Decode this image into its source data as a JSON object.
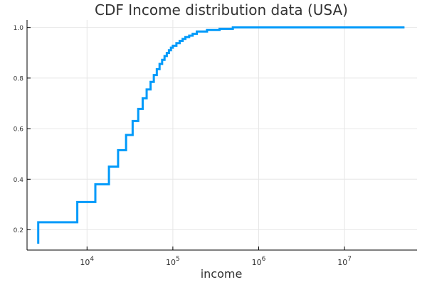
{
  "chart_data": {
    "type": "line",
    "title": "CDF Income distribution data (USA)",
    "xlabel": "income",
    "ylabel": "",
    "x_scale": "log10",
    "xlim": [
      2000,
      70000000
    ],
    "ylim": [
      0.12,
      1.03
    ],
    "grid": true,
    "legend": "none",
    "x_ticks": [
      {
        "value": 10000,
        "base": "10",
        "exponent": "4"
      },
      {
        "value": 100000,
        "base": "10",
        "exponent": "5"
      },
      {
        "value": 1000000,
        "base": "10",
        "exponent": "6"
      },
      {
        "value": 10000000,
        "base": "10",
        "exponent": "7"
      }
    ],
    "y_ticks": [
      {
        "value": 0.2,
        "label": "0.2"
      },
      {
        "value": 0.4,
        "label": "0.4"
      },
      {
        "value": 0.6,
        "label": "0.6"
      },
      {
        "value": 0.8,
        "label": "0.8"
      },
      {
        "value": 1.0,
        "label": "1.0"
      }
    ],
    "series": [
      {
        "color": "#009AFA",
        "step": true,
        "points": [
          [
            2700,
            0.145
          ],
          [
            2700,
            0.23
          ],
          [
            7700,
            0.23
          ],
          [
            7700,
            0.31
          ],
          [
            12500,
            0.31
          ],
          [
            12500,
            0.38
          ],
          [
            18000,
            0.38
          ],
          [
            18000,
            0.45
          ],
          [
            23000,
            0.45
          ],
          [
            23000,
            0.515
          ],
          [
            28500,
            0.515
          ],
          [
            28500,
            0.575
          ],
          [
            34000,
            0.575
          ],
          [
            34000,
            0.63
          ],
          [
            39500,
            0.63
          ],
          [
            39500,
            0.678
          ],
          [
            44500,
            0.678
          ],
          [
            44500,
            0.72
          ],
          [
            49500,
            0.72
          ],
          [
            49500,
            0.755
          ],
          [
            55000,
            0.755
          ],
          [
            55000,
            0.785
          ],
          [
            60000,
            0.785
          ],
          [
            60000,
            0.812
          ],
          [
            65000,
            0.812
          ],
          [
            65000,
            0.835
          ],
          [
            70000,
            0.835
          ],
          [
            70000,
            0.856
          ],
          [
            75000,
            0.856
          ],
          [
            75000,
            0.872
          ],
          [
            80000,
            0.872
          ],
          [
            80000,
            0.887
          ],
          [
            85000,
            0.887
          ],
          [
            85000,
            0.899
          ],
          [
            90000,
            0.899
          ],
          [
            90000,
            0.91
          ],
          [
            95000,
            0.91
          ],
          [
            95000,
            0.92
          ],
          [
            100000,
            0.92
          ],
          [
            100000,
            0.928
          ],
          [
            110000,
            0.928
          ],
          [
            110000,
            0.938
          ],
          [
            120000,
            0.938
          ],
          [
            120000,
            0.947
          ],
          [
            130000,
            0.947
          ],
          [
            130000,
            0.955
          ],
          [
            140000,
            0.955
          ],
          [
            140000,
            0.962
          ],
          [
            155000,
            0.962
          ],
          [
            155000,
            0.968
          ],
          [
            170000,
            0.968
          ],
          [
            170000,
            0.975
          ],
          [
            190000,
            0.975
          ],
          [
            190000,
            0.984
          ],
          [
            250000,
            0.984
          ],
          [
            250000,
            0.99
          ],
          [
            350000,
            0.99
          ],
          [
            350000,
            0.995
          ],
          [
            500000,
            0.995
          ],
          [
            500000,
            1.0
          ],
          [
            50000000,
            1.0
          ]
        ]
      }
    ]
  }
}
